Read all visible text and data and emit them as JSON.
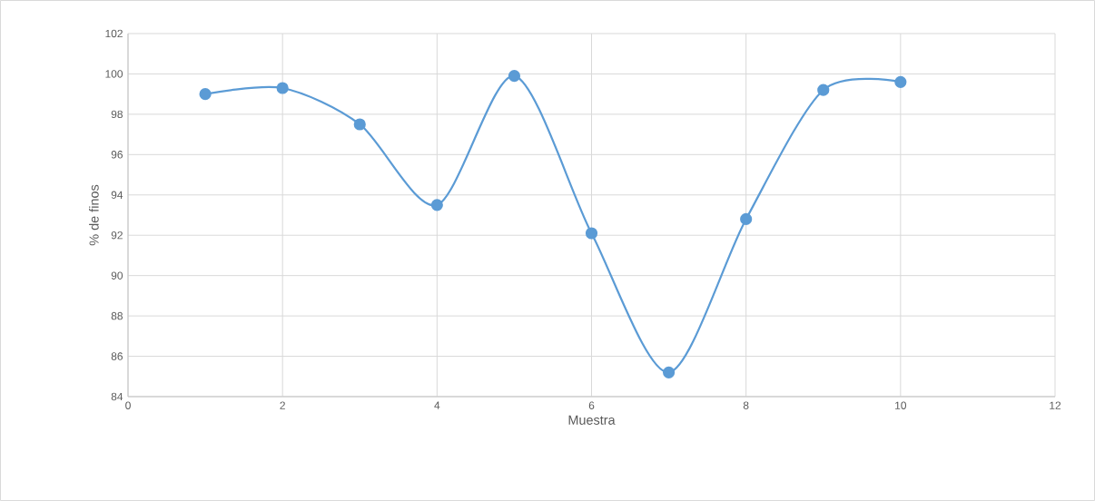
{
  "chart_data": {
    "type": "line",
    "xlabel": "Muestra",
    "ylabel": "% de finos",
    "x": [
      1,
      2,
      3,
      4,
      5,
      6,
      7,
      8,
      9,
      10
    ],
    "values": [
      99.0,
      99.3,
      97.5,
      93.5,
      99.9,
      92.1,
      85.2,
      92.8,
      99.2,
      99.6
    ],
    "color": "#5b9bd5",
    "xlim": [
      0,
      12
    ],
    "xticks": [
      0,
      2,
      4,
      6,
      8,
      10,
      12
    ],
    "ylim": [
      84,
      102
    ],
    "yticks": [
      84,
      86,
      88,
      90,
      92,
      94,
      96,
      98,
      100,
      102
    ],
    "grid": true,
    "marker": "circle"
  }
}
